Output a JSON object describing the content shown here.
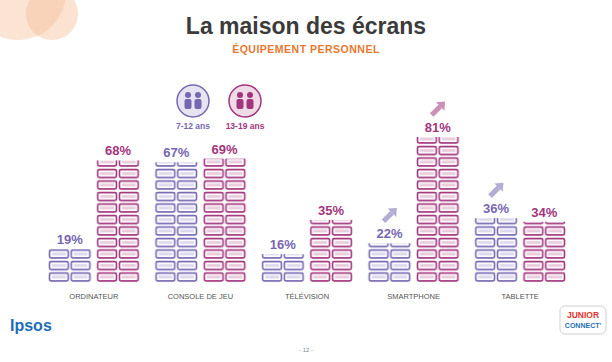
{
  "chart_data": {
    "type": "bar",
    "title": "La maison des écrans",
    "subtitle": "ÉQUIPEMENT PERSONNEL",
    "categories": [
      "ORDINATEUR",
      "CONSOLE DE JEU",
      "TÉLÉVISION",
      "SMARTPHONE",
      "TABLETTE"
    ],
    "series": [
      {
        "name": "7-12 ans",
        "color": "#7767b3",
        "values": [
          19,
          67,
          16,
          22,
          36
        ],
        "value_labels": [
          "19%",
          "67%",
          "16%",
          "22%",
          "36%"
        ]
      },
      {
        "name": "13-19 ans",
        "color": "#a3357c",
        "values": [
          68,
          69,
          35,
          81,
          34
        ],
        "value_labels": [
          "68%",
          "69%",
          "35%",
          "81%",
          "34%"
        ]
      }
    ],
    "data_labels": true,
    "tick_labels": "x",
    "legend": "top",
    "source": "Ipsos",
    "page": "- 12 -",
    "logo": [
      "JUNIOR",
      "CONNECT'"
    ]
  }
}
